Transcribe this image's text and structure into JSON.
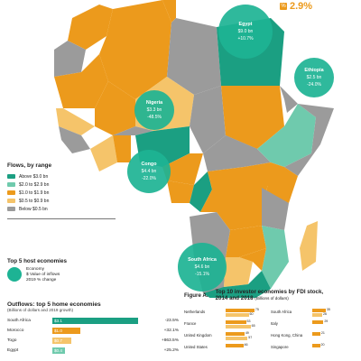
{
  "top_badge": {
    "value": "2.9%",
    "icon": "percent-icon"
  },
  "colors": {
    "above_3": "#1b9f82",
    "range_2_29": "#6fcaad",
    "range_1_19": "#ec9a1c",
    "range_05_09": "#f5c46a",
    "below_05": "#9b9b9b",
    "bubble": "#1db394"
  },
  "bubbles": [
    {
      "name": "Egypt",
      "value": "$9.0 bn",
      "change": "+10.7%"
    },
    {
      "name": "Ethiopia",
      "value": "$2.5 bn",
      "change": "-24.0%"
    },
    {
      "name": "Nigeria",
      "value": "$3.3 bn",
      "change": "-48.5%"
    },
    {
      "name": "Congo",
      "value": "$4.4 bn",
      "change": "-22.0%"
    },
    {
      "name": "South Africa",
      "value": "$4.6 bn",
      "change": "-15.1%"
    }
  ],
  "legend": {
    "title": "Flows, by range",
    "items": [
      {
        "label": "Above $3.0 bn"
      },
      {
        "label": "$2.0 to $2.9 bn"
      },
      {
        "label": "$1.0 to $1.9 bn"
      },
      {
        "label": "$0.5 to $0.9 bn"
      },
      {
        "label": "Below $0.5 bn"
      }
    ]
  },
  "top5": {
    "title": "Top 5 host economies",
    "line1": "Economy",
    "line2": "$ Value of inflows",
    "line3": "2019 % change"
  },
  "outflows": {
    "title": "Outflows: top 5 home economies",
    "subtitle": "(Billions of dollars and 2019 growth)",
    "rows": [
      {
        "country": "South Africa",
        "value": "$3.1",
        "amount": 3.1,
        "growth": "-23.5%"
      },
      {
        "country": "Morocco",
        "value": "$1.0",
        "amount": 1.0,
        "growth": "+32.1%"
      },
      {
        "country": "Togo",
        "value": "$0.7",
        "amount": 0.7,
        "growth": "+863.5%"
      },
      {
        "country": "Egypt",
        "value": "$0.4",
        "amount": 0.4,
        "growth": "+25.2%"
      }
    ]
  },
  "figure": {
    "label": "Figure A.",
    "title_line1": "Top 10 investor economies by FDI stock,",
    "title_line2": "2014 and 2018",
    "title_sub": "(Billions of dollars)",
    "left": [
      {
        "country": "Netherlands",
        "a": "75",
        "b": "60",
        "va": 75,
        "vb": 60
      },
      {
        "country": "France",
        "a": "53",
        "b": "65",
        "va": 53,
        "vb": 65
      },
      {
        "country": "United Kingdom",
        "a": "49",
        "b": "57",
        "va": 49,
        "vb": 57
      },
      {
        "country": "United States",
        "a": "46",
        "b": "",
        "va": 46,
        "vb": 0
      }
    ],
    "right": [
      {
        "country": "South Africa",
        "a": "35",
        "b": "26",
        "va": 35,
        "vb": 26
      },
      {
        "country": "Italy",
        "a": "29",
        "b": "",
        "va": 29,
        "vb": 0
      },
      {
        "country": "Hong Kong, China",
        "a": "21",
        "b": "",
        "va": 21,
        "vb": 0
      },
      {
        "country": "Singapore",
        "a": "20",
        "b": "",
        "va": 20,
        "vb": 0
      }
    ]
  }
}
